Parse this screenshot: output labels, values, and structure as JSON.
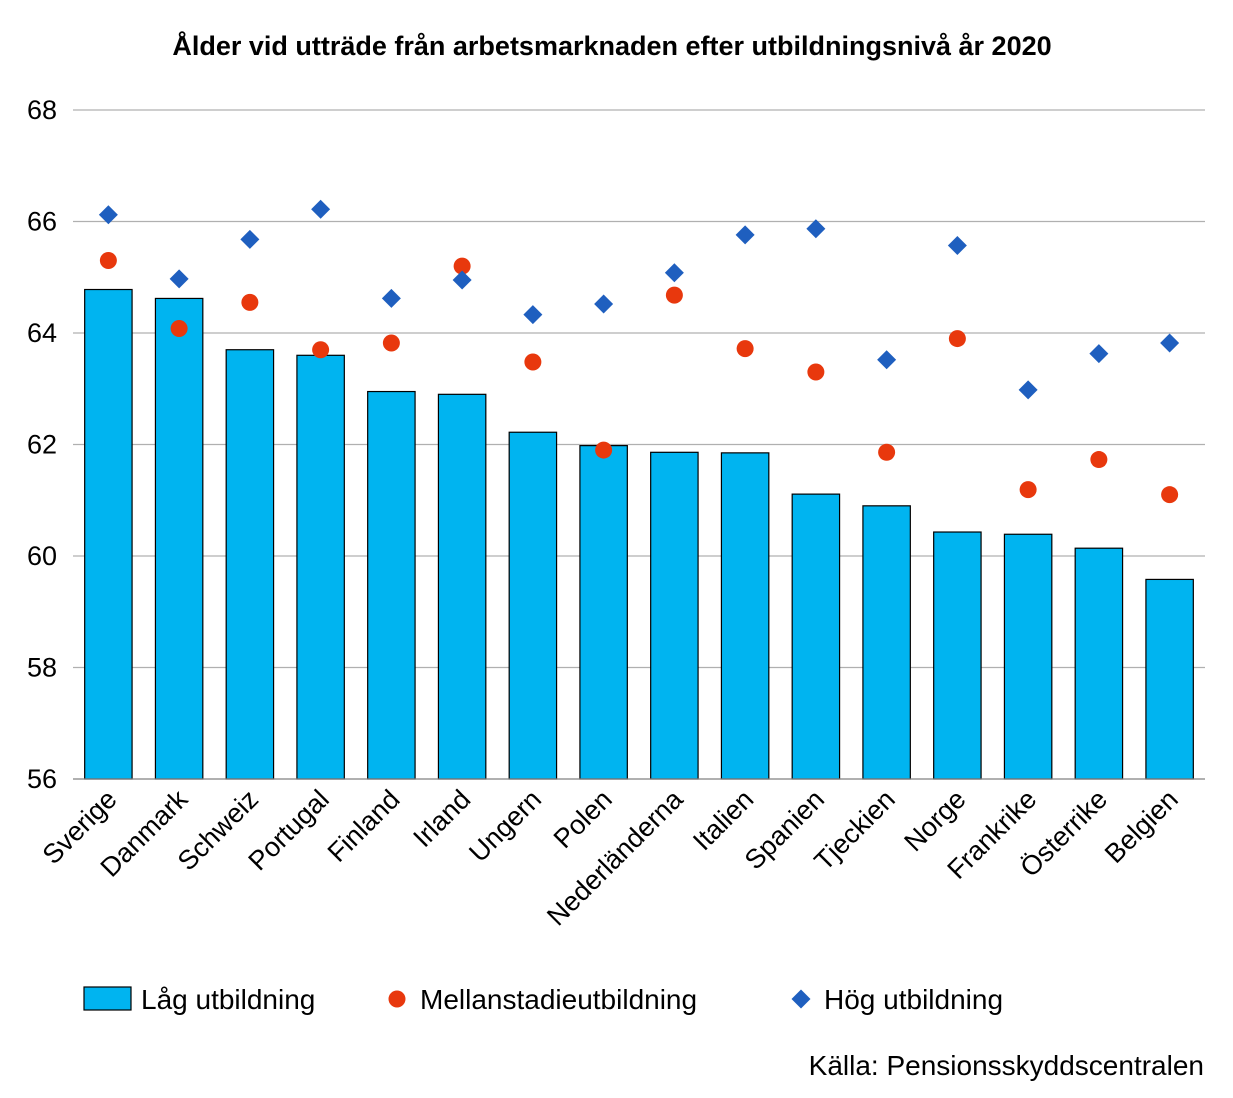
{
  "chart_data": {
    "type": "bar",
    "title": "Ålder vid utträde från arbetsmarknaden efter utbildningsnivå år 2020",
    "source": "Källa: Pensionsskyddscentralen",
    "categories": [
      "Sverige",
      "Danmark",
      "Schweiz",
      "Portugal",
      "Finland",
      "Irland",
      "Ungern",
      "Polen",
      "Nederländerna",
      "Italien",
      "Spanien",
      "Tjeckien",
      "Norge",
      "Frankrike",
      "Österrike",
      "Belgien"
    ],
    "ylim": [
      56,
      68
    ],
    "yticks": [
      56,
      58,
      60,
      62,
      64,
      66,
      68
    ],
    "grid": true,
    "legend_position": "bottom",
    "series": [
      {
        "name": "Låg utbildning",
        "mark": "bar",
        "color": "#00B4F0",
        "values": [
          64.78,
          64.62,
          63.7,
          63.6,
          62.95,
          62.9,
          62.22,
          61.98,
          61.86,
          61.85,
          61.11,
          60.9,
          60.43,
          60.39,
          60.14,
          59.58
        ]
      },
      {
        "name": "Mellanstadieutbildning",
        "mark": "circle",
        "color": "#E8380D",
        "values": [
          65.3,
          64.08,
          64.55,
          63.7,
          63.82,
          65.2,
          63.48,
          61.9,
          64.68,
          63.72,
          63.3,
          61.86,
          63.9,
          61.19,
          61.73,
          61.1
        ]
      },
      {
        "name": "Hög utbildning",
        "mark": "diamond",
        "color": "#1F5FBF",
        "values": [
          66.12,
          64.97,
          65.68,
          66.22,
          64.62,
          64.95,
          64.33,
          64.52,
          65.08,
          65.76,
          65.87,
          63.52,
          65.57,
          62.98,
          63.63,
          63.82
        ]
      }
    ]
  }
}
